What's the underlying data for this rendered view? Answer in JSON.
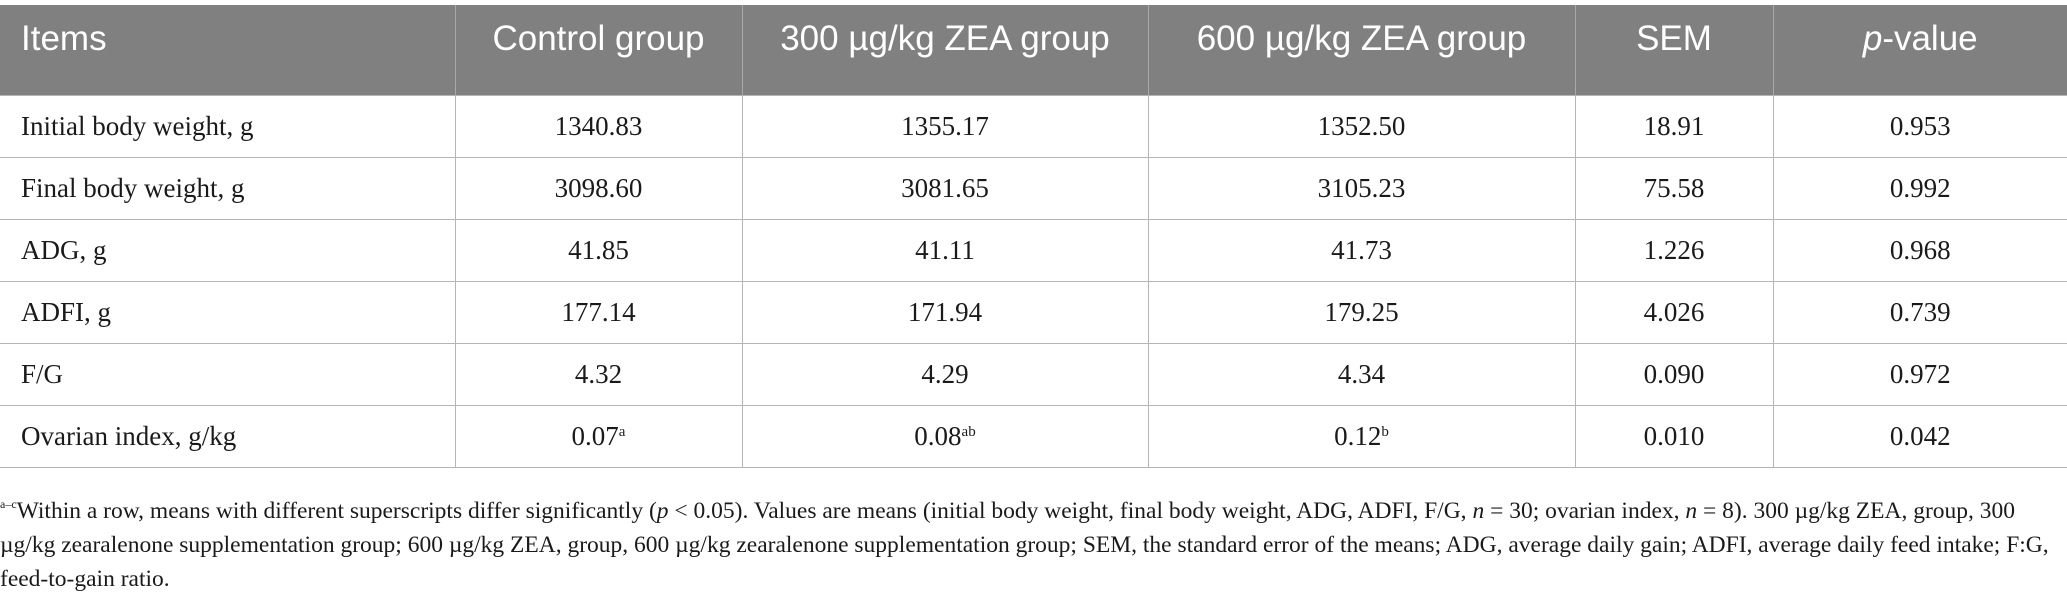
{
  "table": {
    "headers": {
      "items": "Items",
      "control": "Control group",
      "zea300": "300 µg/kg ZEA group",
      "zea600": "600 µg/kg ZEA group",
      "sem": "SEM",
      "pvalue_p": "p",
      "pvalue_rest": "-value"
    },
    "rows": [
      {
        "item": "Initial body weight, g",
        "control": "1340.83",
        "control_sup": "",
        "zea300": "1355.17",
        "zea300_sup": "",
        "zea600": "1352.50",
        "zea600_sup": "",
        "sem": "18.91",
        "p": "0.953"
      },
      {
        "item": "Final body weight, g",
        "control": "3098.60",
        "control_sup": "",
        "zea300": "3081.65",
        "zea300_sup": "",
        "zea600": "3105.23",
        "zea600_sup": "",
        "sem": "75.58",
        "p": "0.992"
      },
      {
        "item": "ADG, g",
        "control": "41.85",
        "control_sup": "",
        "zea300": "41.11",
        "zea300_sup": "",
        "zea600": "41.73",
        "zea600_sup": "",
        "sem": "1.226",
        "p": "0.968"
      },
      {
        "item": "ADFI, g",
        "control": "177.14",
        "control_sup": "",
        "zea300": "171.94",
        "zea300_sup": "",
        "zea600": "179.25",
        "zea600_sup": "",
        "sem": "4.026",
        "p": "0.739"
      },
      {
        "item": "F/G",
        "control": "4.32",
        "control_sup": "",
        "zea300": "4.29",
        "zea300_sup": "",
        "zea600": "4.34",
        "zea600_sup": "",
        "sem": "0.090",
        "p": "0.972"
      },
      {
        "item": "Ovarian index, g/kg",
        "control": "0.07",
        "control_sup": "a",
        "zea300": "0.08",
        "zea300_sup": "ab",
        "zea600": "0.12",
        "zea600_sup": "b",
        "sem": "0.010",
        "p": "0.042"
      }
    ]
  },
  "footnote": {
    "sup": "a–c",
    "t1": "Within a row, means with different superscripts differ significantly (",
    "p1": "p",
    "t2": " < 0.05). Values are means (initial body weight, final body weight, ADG, ADFI, F/G, ",
    "n1": "n",
    "t3": " = 30; ovarian index, ",
    "n2": "n",
    "t4": " = 8). 300 µg/kg ZEA, group, 300 µg/kg zearalenone supplementation group; 600 µg/kg ZEA, group, 600 µg/kg zearalenone supplementation group; SEM, the standard error of the means; ADG, average daily gain; ADFI, average daily feed intake; F:G, feed-to-gain ratio."
  }
}
